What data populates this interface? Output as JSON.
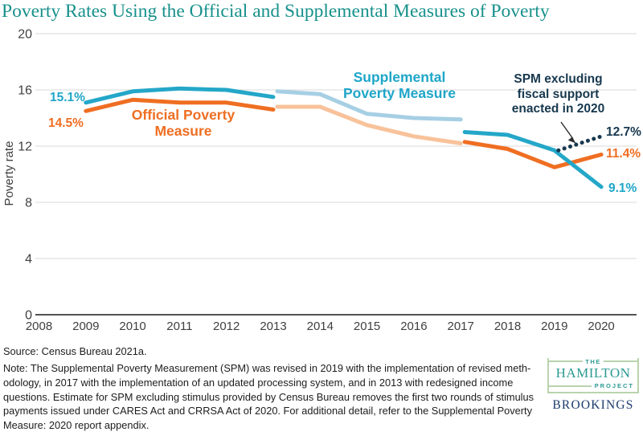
{
  "title": "Poverty Rates Using the Official and Supplemental Measures of Poverty",
  "colors": {
    "cyan": "#24a7c8",
    "cyan_light": "#a6cfe4",
    "orange": "#ef6e22",
    "orange_light": "#f8c29a",
    "navy": "#17384e",
    "title_teal": "#17918b",
    "grid": "#d8d8d8",
    "brookings_navy": "#1b3a6c",
    "hamilton_teal": "#2b9a92"
  },
  "chart_data": {
    "type": "line",
    "title": "Poverty Rates Using the Official and Supplemental Measures of Poverty",
    "xlabel": "",
    "ylabel": "Poverty rate",
    "xlim": [
      2008,
      2020
    ],
    "ylim": [
      0,
      20
    ],
    "xticks": [
      2008,
      2009,
      2010,
      2011,
      2012,
      2013,
      2014,
      2015,
      2016,
      2017,
      2018,
      2019,
      2020
    ],
    "yticks": [
      0,
      4,
      8,
      12,
      16,
      20
    ],
    "grid": "horizontal gridlines on",
    "legend_position": "inline labels on chart",
    "series": [
      {
        "id": "opm-2009-2013",
        "name": "Official Poverty Measure (2009-2013)",
        "color_key": "orange",
        "style": "solid",
        "years": [
          2009,
          2010,
          2011,
          2012,
          2013
        ],
        "values": [
          14.5,
          15.3,
          15.1,
          15.1,
          14.6
        ]
      },
      {
        "id": "opm-2013-2017",
        "name": "Official Poverty Measure (2013-2017, redesigned income questions)",
        "color_key": "orange_light",
        "style": "solid",
        "gap_before": true,
        "years": [
          2013,
          2014,
          2015,
          2016,
          2017
        ],
        "values": [
          14.8,
          14.8,
          13.5,
          12.7,
          12.2
        ]
      },
      {
        "id": "opm-2017-2020",
        "name": "Official Poverty Measure (2017-2020, updated processing system)",
        "color_key": "orange",
        "style": "solid",
        "gap_before": true,
        "years": [
          2017,
          2018,
          2019,
          2020
        ],
        "values": [
          12.3,
          11.8,
          10.5,
          11.4
        ]
      },
      {
        "id": "spm-2009-2013",
        "name": "Supplemental Poverty Measure (2009-2013)",
        "color_key": "cyan",
        "style": "solid",
        "years": [
          2009,
          2010,
          2011,
          2012,
          2013
        ],
        "values": [
          15.1,
          15.9,
          16.1,
          16.0,
          15.5
        ]
      },
      {
        "id": "spm-2013-2017",
        "name": "Supplemental Poverty Measure (2013-2017, redesigned income questions)",
        "color_key": "cyan_light",
        "style": "solid",
        "gap_before": true,
        "years": [
          2013,
          2014,
          2015,
          2016,
          2017
        ],
        "values": [
          15.9,
          15.7,
          14.3,
          14.0,
          13.9
        ]
      },
      {
        "id": "spm-2017-2020",
        "name": "Supplemental Poverty Measure (2017-2020, revised methodology)",
        "color_key": "cyan",
        "style": "solid",
        "gap_before": true,
        "years": [
          2017,
          2018,
          2019,
          2020
        ],
        "values": [
          13.0,
          12.8,
          11.7,
          9.1
        ]
      },
      {
        "id": "spm-excluding-fiscal-support",
        "name": "SPM excluding fiscal support enacted in 2020",
        "color_key": "navy",
        "style": "dotted",
        "gap_before": true,
        "years": [
          2019,
          2020
        ],
        "values": [
          11.7,
          12.7
        ]
      }
    ],
    "annotations": {
      "spm_start": "15.1%",
      "opm_start": "14.5%",
      "opm_name": "Official Poverty\nMeasure",
      "spm_name": "Supplemental\nPoverty Measure",
      "spm_excl": "SPM excluding\nfiscal support\nenacted in 2020",
      "end_spm_excl": "12.7%",
      "end_opm": "11.4%",
      "end_spm": "9.1%"
    }
  },
  "footer": {
    "source": "Source: Census Bureau 2021a.",
    "note": "Note: The Supplemental Poverty Measurement (SPM) was revised in 2019 with the implementation of revised meth-\nodology, in 2017 with the implementation of an updated processing system, and in 2013 with redesigned income\nquestions. Estimate for SPM excluding stimulus provided by Census Bureau removes the first two rounds of stimulus\npayments issued under CARES Act and CRRSA Act of 2020. For additional detail, refer to the Supplemental Poverty\nMeasure: 2020 report appendix."
  },
  "logo": {
    "the": "THE",
    "hamilton": "HAMILTON",
    "project": "PROJECT",
    "brookings": "BROOKINGS"
  }
}
